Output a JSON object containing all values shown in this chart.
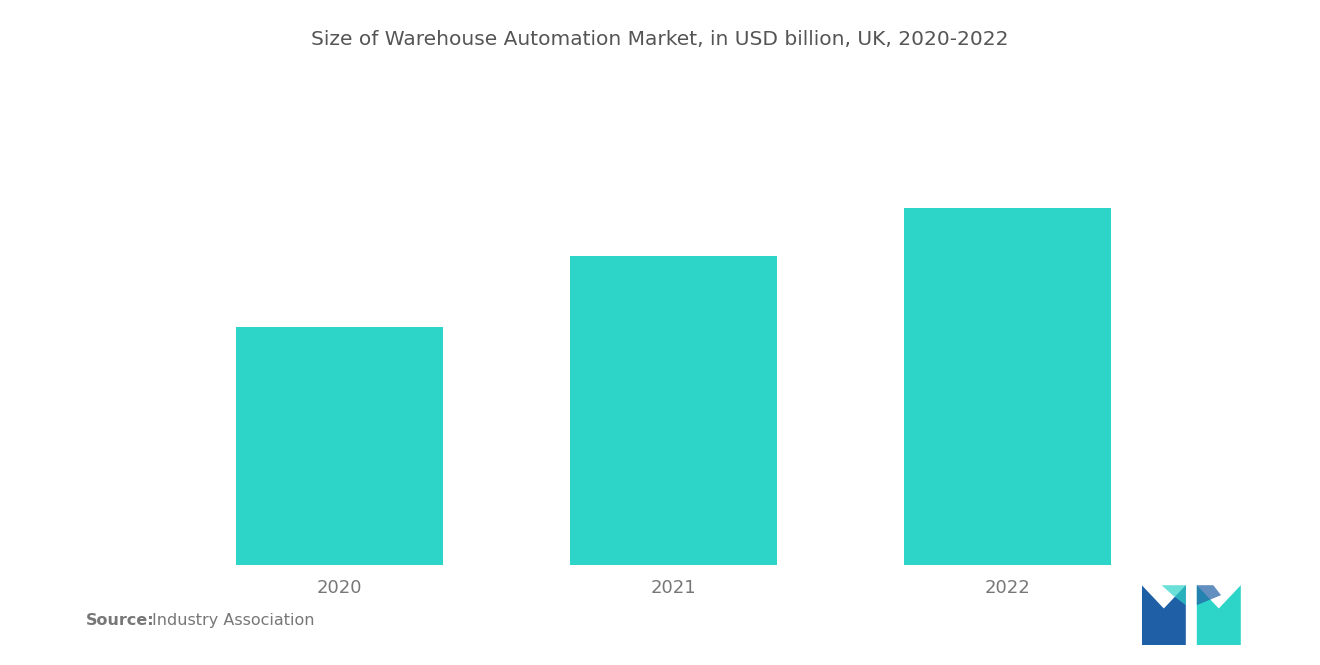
{
  "title": "Size of Warehouse Automation Market, in USD billion, UK, 2020-2022",
  "categories": [
    "2020",
    "2021",
    "2022"
  ],
  "values": [
    4.0,
    5.2,
    6.0
  ],
  "bar_color": "#2DD4C8",
  "background_color": "#ffffff",
  "title_color": "#555555",
  "tick_color": "#777777",
  "source_bold": "Source:",
  "source_text": "  Industry Association",
  "title_fontsize": 14.5,
  "tick_fontsize": 13,
  "source_fontsize": 11.5,
  "bar_width": 0.62,
  "ylim": [
    0,
    8.5
  ],
  "logo_left_color": "#1f5fa6",
  "logo_right_color": "#2DD4C8"
}
